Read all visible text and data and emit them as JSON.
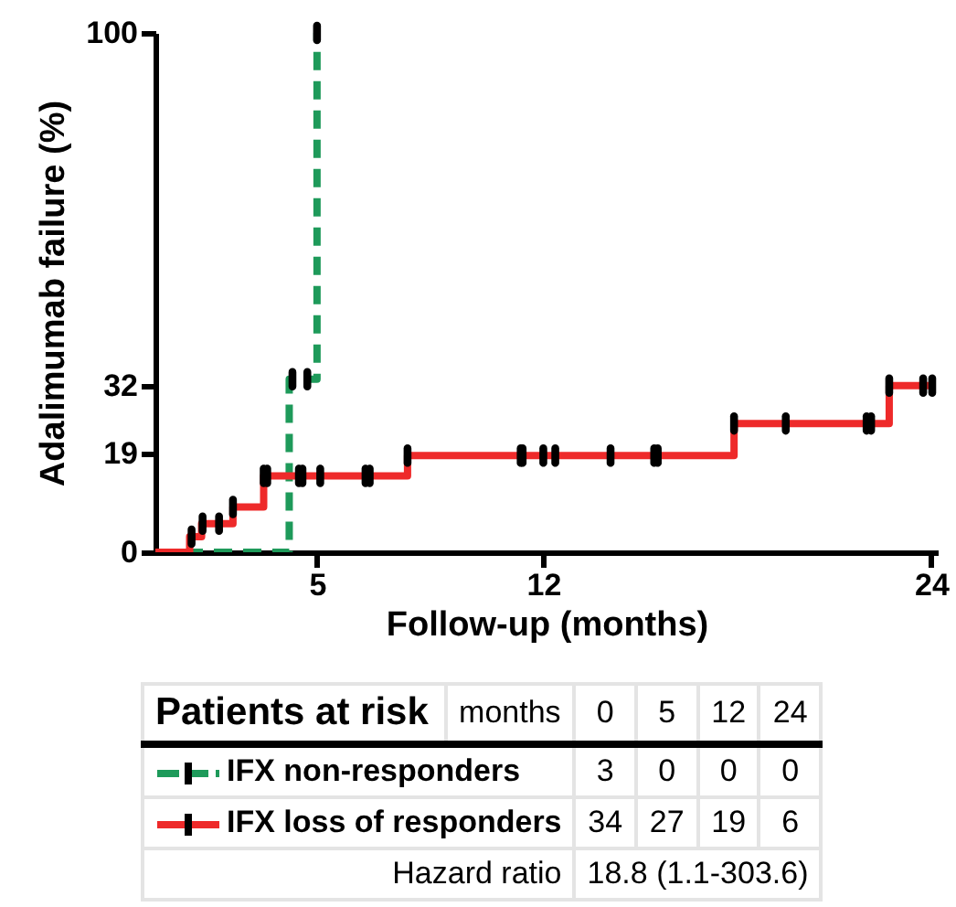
{
  "chart_data": {
    "type": "step",
    "xlabel": "Follow-up (months)",
    "ylabel": "Adalimumab failure (%)",
    "xlim": [
      0,
      24.2
    ],
    "xticks": [
      5,
      12,
      24
    ],
    "ylim": [
      0,
      100
    ],
    "yticks": [
      0,
      19,
      32,
      100
    ],
    "grid": false,
    "legend": "bottom",
    "series": [
      {
        "name": "IFX non-responders",
        "color": "#1e9a5a",
        "line_style": "dashed",
        "x": [
          0,
          4.14,
          5.0
        ],
        "values": [
          0,
          33.3,
          100
        ]
      },
      {
        "name": "IFX loss of responders",
        "color": "#ee2a2a",
        "line_style": "solid",
        "x": [
          0,
          1.06,
          1.43,
          2.4,
          3.35,
          7.8,
          17.9,
          22.7,
          24.1
        ],
        "values": [
          0,
          3,
          5.5,
          8.7,
          14.7,
          18.6,
          24.8,
          32.1,
          32.1
        ]
      },
      {
        "type": "scatter",
        "color": "#000000",
        "x": [
          4.24,
          4.7,
          5.0,
          1.12,
          1.46,
          1.97,
          2.4,
          3.35,
          3.46,
          4.44,
          4.55,
          5.1,
          6.5,
          6.63,
          7.8,
          11.3,
          11.36,
          12.0,
          12.37,
          14.08,
          15.43,
          15.54,
          17.9,
          19.5,
          22.0,
          22.14,
          22.7,
          23.75,
          24.03
        ],
        "values": [
          33.3,
          33.3,
          100,
          3,
          5.5,
          5.5,
          8.7,
          14.7,
          14.7,
          14.7,
          14.7,
          14.7,
          14.7,
          14.7,
          18.6,
          18.6,
          18.6,
          18.6,
          18.6,
          18.6,
          18.6,
          18.6,
          24.8,
          24.8,
          24.8,
          24.8,
          32.1,
          32.1,
          32.1
        ]
      }
    ],
    "annotations": [
      "Patients at risk",
      "months",
      "0",
      "5",
      "12",
      "24",
      "3",
      "0",
      "0",
      "0",
      "34",
      "27",
      "19",
      "6",
      "Hazard ratio",
      "18.8 (1.1-303.6)"
    ]
  }
}
